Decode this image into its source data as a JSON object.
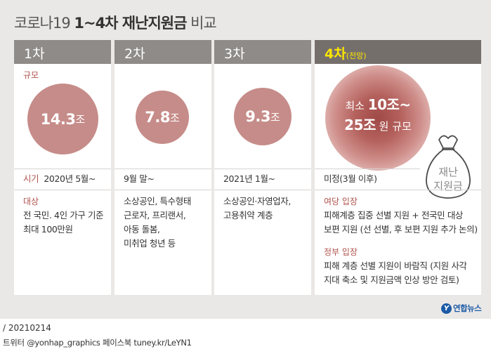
{
  "title": {
    "prefix": "코로나19 ",
    "bold": "1~4차 재난지원금",
    "suffix": " 비교"
  },
  "columns": [
    {
      "header": "1차",
      "scale_label": "규모",
      "amount": "14.3",
      "unit": "조",
      "timing_label": "시기",
      "timing": "2020년 5월~",
      "target_label": "대상",
      "target_lines": [
        "전 국민. 4인 가구 기준",
        "최대 100만원"
      ]
    },
    {
      "header": "2차",
      "amount": "7.8",
      "unit": "조",
      "timing": "9월 말~",
      "target_lines": [
        "소상공인, 특수형태",
        "근로자, 프리랜서,",
        "아동 돌봄,",
        "미취업 청년 등"
      ]
    },
    {
      "header": "3차",
      "amount": "9.3",
      "unit": "조",
      "timing": "2021년 1월~",
      "target_lines": [
        "소상공인·자영업자,",
        "고용취약 계층"
      ]
    },
    {
      "header": "4차",
      "header_sub": "(전망)",
      "amount_line1_pre": "최소 ",
      "amount_line1_bold": "10조~",
      "amount_line2_bold": "25조",
      "amount_line2_post": " 원 규모",
      "timing": "미정(3월 이후)",
      "bag_lines": [
        "재난",
        "지원금"
      ],
      "ruling_label": "여당 입장",
      "ruling_lines": [
        "피해계층 집중 선별 지원 + 전국민 대상",
        "보편 지원 (선 선별, 후 보편 지원 추가 논의)"
      ],
      "gov_label": "정부 입장",
      "gov_lines": [
        "피해 계층 선별 지원이 바람직 (지원 사각",
        "지대 축소 및 지원금액 인상 방안 검토)"
      ]
    }
  ],
  "logo": {
    "mark": "Y",
    "text": "연합뉴스"
  },
  "footer": {
    "date": "/ 20210214",
    "social": "트위터 @yonhap_graphics  페이스북 tuney.kr/LeYN1"
  },
  "colors": {
    "accent_red": "#b0524c",
    "circle": "#c68c89",
    "header_gray": "#8e8b89",
    "highlight_yellow": "#ffe600",
    "logo_blue": "#1b5aa6"
  }
}
